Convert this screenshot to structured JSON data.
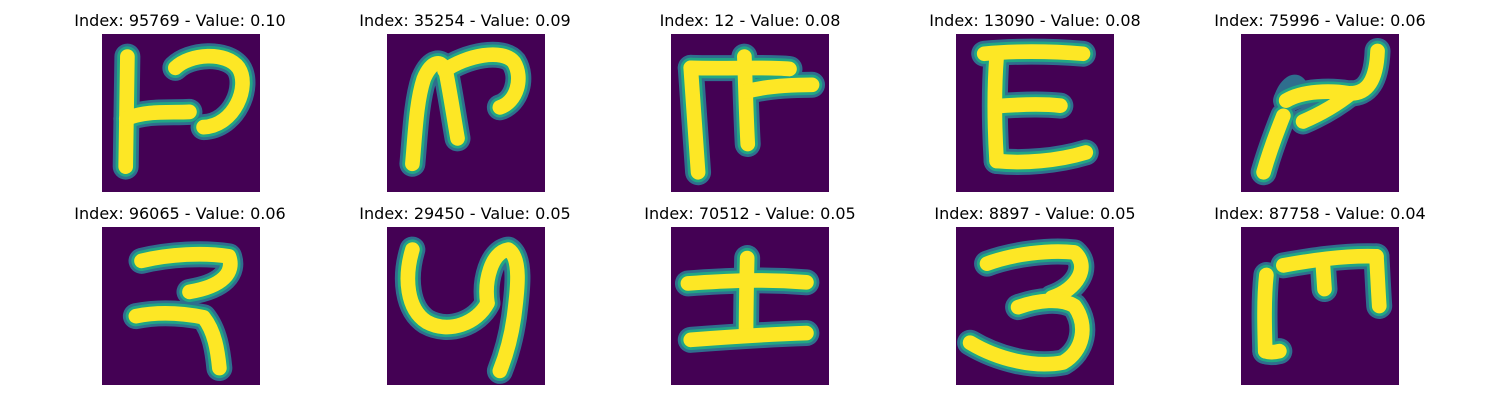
{
  "figure": {
    "colors": {
      "background": "#440154",
      "edge_dark": "#2f6e8e",
      "edge_mid": "#21a685",
      "stroke_core": "#fde725"
    },
    "panels": [
      {
        "title": "Index: 95769 - Value: 0.10",
        "glyph": "devanagari-like-character-1"
      },
      {
        "title": "Index: 35254 - Value: 0.09",
        "glyph": "devanagari-like-character-2"
      },
      {
        "title": "Index: 12 - Value: 0.08",
        "glyph": "devanagari-like-character-3"
      },
      {
        "title": "Index: 13090 - Value: 0.08",
        "glyph": "devanagari-like-character-4"
      },
      {
        "title": "Index: 75996 - Value: 0.06",
        "glyph": "devanagari-like-character-5"
      },
      {
        "title": "Index: 96065 - Value: 0.06",
        "glyph": "devanagari-like-character-6"
      },
      {
        "title": "Index: 29450 - Value: 0.05",
        "glyph": "devanagari-like-character-7"
      },
      {
        "title": "Index: 70512 - Value: 0.05",
        "glyph": "devanagari-like-character-8"
      },
      {
        "title": "Index: 8897 - Value: 0.05",
        "glyph": "devanagari-like-character-9"
      },
      {
        "title": "Index: 87758 - Value: 0.04",
        "glyph": "devanagari-like-character-10"
      }
    ]
  }
}
